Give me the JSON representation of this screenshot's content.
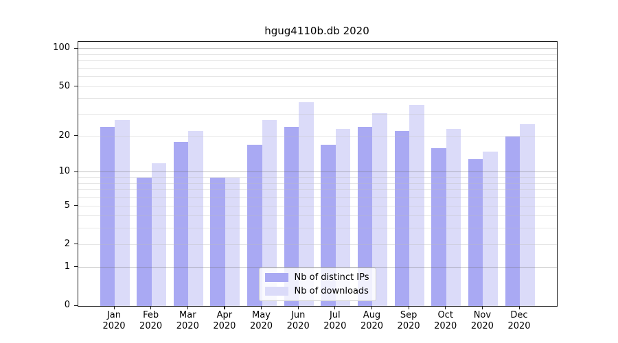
{
  "chart_data": {
    "type": "bar",
    "title": "hgug4110b.db 2020",
    "categories": [
      "Jan",
      "Feb",
      "Mar",
      "Apr",
      "May",
      "Jun",
      "Jul",
      "Aug",
      "Sep",
      "Oct",
      "Nov",
      "Dec"
    ],
    "year": "2020",
    "series": [
      {
        "name": "Nb of distinct IPs",
        "color": "#a9a9f3",
        "values": [
          24,
          9,
          18,
          9,
          17,
          24,
          17,
          24,
          22,
          16,
          13,
          20
        ]
      },
      {
        "name": "Nb of downloads",
        "color": "#dbdbf9",
        "values": [
          27,
          12,
          22,
          9,
          27,
          38,
          23,
          31,
          36,
          23,
          15,
          25
        ]
      }
    ],
    "xlabel": "",
    "ylabel": "",
    "yscale": "log1p",
    "ylim": [
      0,
      115
    ],
    "y_ticks": [
      0,
      1,
      2,
      5,
      10,
      20,
      50,
      100
    ],
    "y_gridlines_minor": [
      2,
      3,
      4,
      5,
      6,
      7,
      8,
      9,
      20,
      30,
      40,
      50,
      60,
      70,
      80,
      90
    ],
    "y_gridlines_major": [
      1,
      10,
      100
    ],
    "grid": true,
    "legend_position": "bottom-center"
  }
}
